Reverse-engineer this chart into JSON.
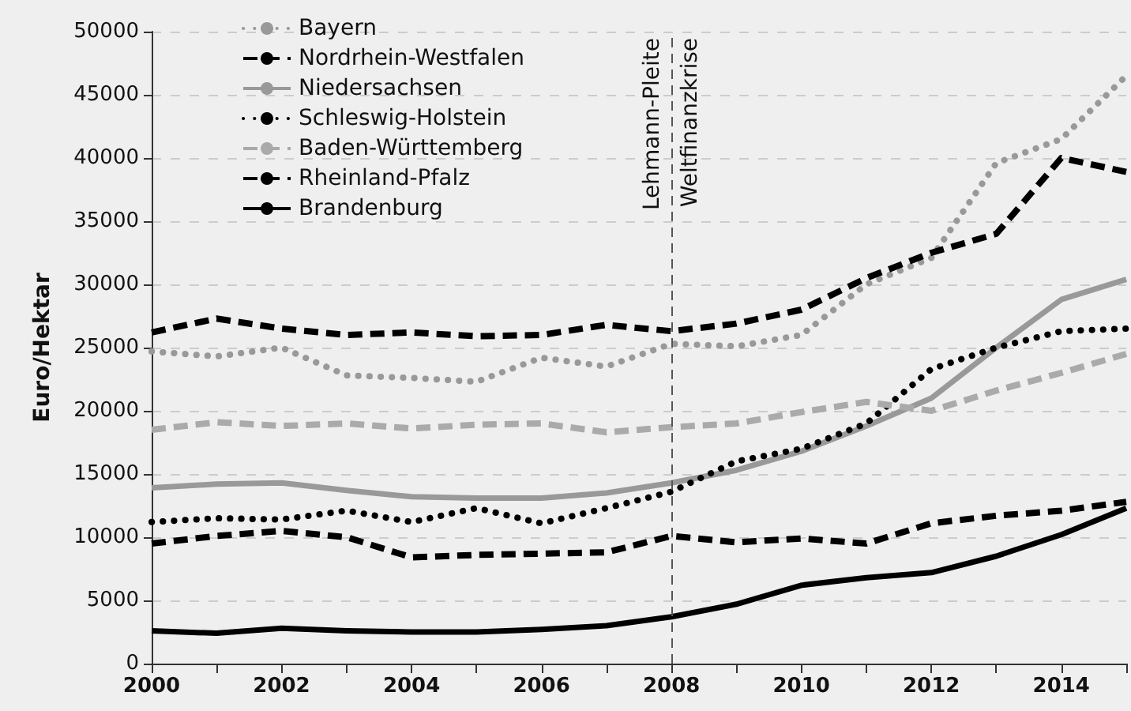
{
  "chart_data": {
    "type": "line",
    "ylabel": "Euro/Hektar",
    "x": [
      2000,
      2001,
      2002,
      2003,
      2004,
      2005,
      2006,
      2007,
      2008,
      2009,
      2010,
      2011,
      2012,
      2013,
      2014,
      2015
    ],
    "series": [
      {
        "name": "Bayern",
        "color": "#999999",
        "line_style": "dotted",
        "values": [
          24700,
          24300,
          25000,
          22800,
          22600,
          22300,
          24200,
          23500,
          25300,
          25100,
          26000,
          30000,
          32100,
          39600,
          41500,
          46500
        ]
      },
      {
        "name": "Nordrhein-Westfalen",
        "color": "#000000",
        "line_style": "dashed",
        "values": [
          26200,
          27300,
          26500,
          26000,
          26200,
          25900,
          26000,
          26800,
          26300,
          26900,
          28000,
          30500,
          32500,
          34000,
          40000,
          38900
        ]
      },
      {
        "name": "Niedersachsen",
        "color": "#999999",
        "line_style": "solid",
        "values": [
          13900,
          14200,
          14300,
          13700,
          13200,
          13100,
          13100,
          13500,
          14300,
          15300,
          16800,
          18800,
          21000,
          25000,
          28800,
          30400
        ]
      },
      {
        "name": "Schleswig-Holstein",
        "color": "#000000",
        "line_style": "dotted",
        "values": [
          11200,
          11500,
          11400,
          12100,
          11200,
          12300,
          11100,
          12300,
          13600,
          16000,
          17000,
          19000,
          23300,
          25000,
          26300,
          26500
        ]
      },
      {
        "name": "Baden-Württemberg",
        "color": "#aaaaaa",
        "line_style": "dashed",
        "values": [
          18500,
          19100,
          18800,
          19000,
          18600,
          18900,
          19000,
          18300,
          18700,
          19000,
          19900,
          20700,
          20000,
          21600,
          23000,
          24500
        ]
      },
      {
        "name": "Rheinland-Pfalz",
        "color": "#000000",
        "line_style": "dashed",
        "values": [
          9500,
          10100,
          10500,
          10000,
          8400,
          8600,
          8700,
          8800,
          10100,
          9600,
          9900,
          9500,
          11100,
          11700,
          12100,
          12800
        ]
      },
      {
        "name": "Brandenburg",
        "color": "#000000",
        "line_style": "solid",
        "values": [
          2600,
          2400,
          2800,
          2600,
          2500,
          2500,
          2700,
          3000,
          3700,
          4700,
          6200,
          6800,
          7200,
          8500,
          10200,
          12300
        ]
      }
    ],
    "xlim": [
      2000,
      2015
    ],
    "xticks": [
      2000,
      {
        "value": 2001,
        "label": null
      },
      2002,
      {
        "value": 2003,
        "label": null
      },
      2004,
      {
        "value": 2005,
        "label": null
      },
      2006,
      {
        "value": 2007,
        "label": null
      },
      2008,
      {
        "value": 2009,
        "label": null
      },
      2010,
      {
        "value": 2011,
        "label": null
      },
      2012,
      {
        "value": 2013,
        "label": null
      },
      2014,
      {
        "value": 2015,
        "label": null
      }
    ],
    "ylim": [
      0,
      50000
    ],
    "yticks": [
      0,
      5000,
      10000,
      15000,
      20000,
      25000,
      30000,
      35000,
      40000,
      45000,
      50000
    ],
    "grid": "y",
    "legend": "top left",
    "marker": "none",
    "ref_lines": [
      {
        "axis": "x",
        "value": 2008,
        "label": "Lehmann-Pleite",
        "color": "#555555",
        "line_style": "dashed"
      }
    ],
    "annotations": [
      {
        "text": "Weltfinanzkrise",
        "x": 2008,
        "y": 50000
      }
    ]
  }
}
